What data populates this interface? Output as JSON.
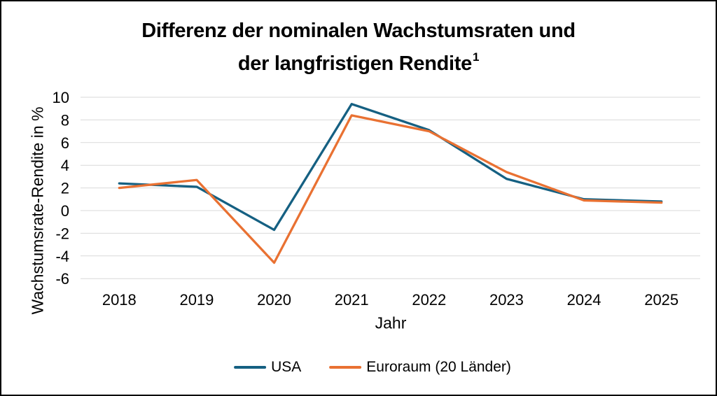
{
  "title": {
    "lines": [
      "Differenz der nominalen Wachstumsraten und",
      "der langfristigen Rendite"
    ],
    "superscript": "1"
  },
  "chart_data": {
    "type": "line",
    "title": "Differenz der nominalen Wachstumsraten und der langfristigen Rendite",
    "title_footnote_marker": "1",
    "xlabel": "Jahr",
    "ylabel": "Wachstumsrate-Rendite in %",
    "categories": [
      "2018",
      "2019",
      "2020",
      "2021",
      "2022",
      "2023",
      "2024",
      "2025"
    ],
    "series": [
      {
        "name": "USA",
        "color": "#156082",
        "values": [
          2.4,
          2.1,
          -1.7,
          9.4,
          7.1,
          2.8,
          1.0,
          0.8
        ]
      },
      {
        "name": "Euroraum (20 Länder)",
        "color": "#E97132",
        "values": [
          2.0,
          2.7,
          -4.6,
          8.4,
          7.0,
          3.4,
          0.9,
          0.7
        ]
      }
    ],
    "ylim": [
      -6,
      10
    ],
    "ytick_step": 2,
    "yticks": [
      -6,
      -4,
      -2,
      0,
      2,
      4,
      6,
      8,
      10
    ],
    "grid": "horizontal",
    "gridline_color": "#D9D9D9",
    "legend_position": "bottom",
    "text_color": "#000000",
    "background": "#FFFFFF"
  }
}
